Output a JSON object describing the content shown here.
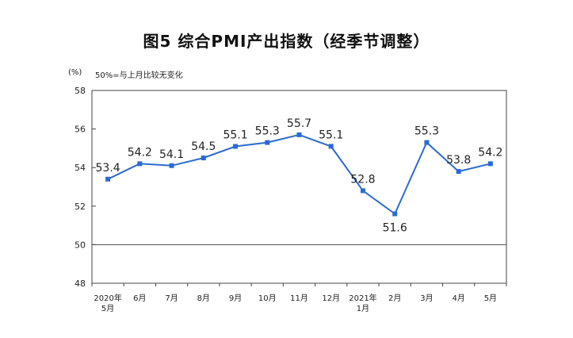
{
  "title": "图5 综合PMI产出指数（经季节调整）",
  "unit_label": "(%)",
  "note": "50%=与上月比较无变化",
  "chart_data": {
    "type": "line",
    "title": "图5 综合PMI产出指数（经季节调整）",
    "ylabel": "(%)",
    "ylim": [
      48,
      58
    ],
    "yticks": [
      48,
      50,
      52,
      54,
      56,
      58
    ],
    "reference_line": 50,
    "categories": [
      [
        "2020年",
        "5月"
      ],
      [
        "6月"
      ],
      [
        "7月"
      ],
      [
        "8月"
      ],
      [
        "9月"
      ],
      [
        "10月"
      ],
      [
        "11月"
      ],
      [
        "12月"
      ],
      [
        "2021年",
        "1月"
      ],
      [
        "2月"
      ],
      [
        "3月"
      ],
      [
        "4月"
      ],
      [
        "5月"
      ]
    ],
    "values": [
      53.4,
      54.2,
      54.1,
      54.5,
      55.1,
      55.3,
      55.7,
      55.1,
      52.8,
      51.6,
      55.3,
      53.8,
      54.2
    ],
    "labels_below": [
      false,
      false,
      false,
      false,
      false,
      false,
      false,
      false,
      false,
      true,
      false,
      false,
      false
    ],
    "line_color": "#2b6bd1",
    "grid": false,
    "legend": "none"
  }
}
